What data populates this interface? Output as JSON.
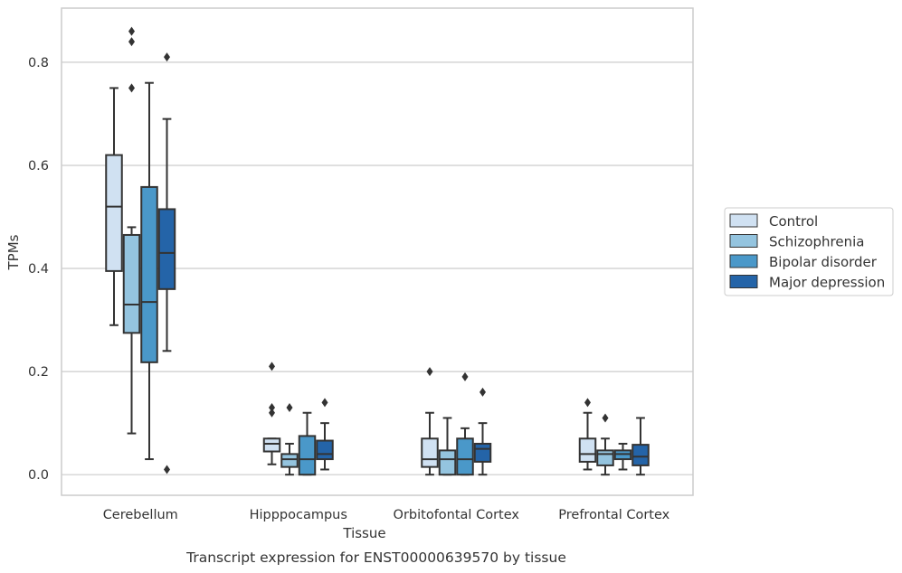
{
  "chart_data": {
    "type": "box",
    "title": "",
    "caption": "Transcript expression for ENST00000639570 by tissue",
    "xlabel": "Tissue",
    "ylabel": "TPMs",
    "ylim": [
      -0.04,
      0.905
    ],
    "yticks": [
      0.0,
      0.2,
      0.4,
      0.6,
      0.8
    ],
    "ytick_labels": [
      "0.0",
      "0.2",
      "0.4",
      "0.6",
      "0.8"
    ],
    "grid": "horizontal",
    "legend_position": "right",
    "categories": [
      "Cerebellum",
      "Hipppocampus",
      "Orbitofontal Cortex",
      "Prefrontal Cortex"
    ],
    "series": [
      {
        "name": "Control",
        "color": "#d0e1f2",
        "boxes": [
          {
            "whisker_low": 0.29,
            "q1": 0.395,
            "median": 0.52,
            "q3": 0.62,
            "whisker_high": 0.75,
            "outliers": []
          },
          {
            "whisker_low": 0.02,
            "q1": 0.045,
            "median": 0.06,
            "q3": 0.07,
            "whisker_high": 0.07,
            "outliers": [
              0.12,
              0.13,
              0.21
            ]
          },
          {
            "whisker_low": 0.0,
            "q1": 0.015,
            "median": 0.03,
            "q3": 0.07,
            "whisker_high": 0.12,
            "outliers": [
              0.2
            ]
          },
          {
            "whisker_low": 0.01,
            "q1": 0.025,
            "median": 0.04,
            "q3": 0.07,
            "whisker_high": 0.12,
            "outliers": [
              0.14
            ]
          }
        ]
      },
      {
        "name": "Schizophrenia",
        "color": "#94c4df",
        "boxes": [
          {
            "whisker_low": 0.08,
            "q1": 0.275,
            "median": 0.33,
            "q3": 0.465,
            "whisker_high": 0.48,
            "outliers": [
              0.75,
              0.84,
              0.86
            ]
          },
          {
            "whisker_low": 0.0,
            "q1": 0.015,
            "median": 0.03,
            "q3": 0.04,
            "whisker_high": 0.06,
            "outliers": [
              0.13
            ]
          },
          {
            "whisker_low": 0.0,
            "q1": 0.0,
            "median": 0.03,
            "q3": 0.047,
            "whisker_high": 0.11,
            "outliers": []
          },
          {
            "whisker_low": 0.0,
            "q1": 0.018,
            "median": 0.04,
            "q3": 0.047,
            "whisker_high": 0.07,
            "outliers": [
              0.11
            ]
          }
        ]
      },
      {
        "name": "Bipolar disorder",
        "color": "#4a98c9",
        "boxes": [
          {
            "whisker_low": 0.03,
            "q1": 0.218,
            "median": 0.335,
            "q3": 0.558,
            "whisker_high": 0.76,
            "outliers": []
          },
          {
            "whisker_low": 0.0,
            "q1": 0.0,
            "median": 0.03,
            "q3": 0.075,
            "whisker_high": 0.12,
            "outliers": []
          },
          {
            "whisker_low": 0.0,
            "q1": 0.0,
            "median": 0.03,
            "q3": 0.07,
            "whisker_high": 0.09,
            "outliers": [
              0.19
            ]
          },
          {
            "whisker_low": 0.01,
            "q1": 0.03,
            "median": 0.04,
            "q3": 0.047,
            "whisker_high": 0.06,
            "outliers": []
          }
        ]
      },
      {
        "name": "Major depression",
        "color": "#2464a8",
        "boxes": [
          {
            "whisker_low": 0.24,
            "q1": 0.36,
            "median": 0.43,
            "q3": 0.515,
            "whisker_high": 0.69,
            "outliers": [
              0.01,
              0.81
            ]
          },
          {
            "whisker_low": 0.01,
            "q1": 0.03,
            "median": 0.04,
            "q3": 0.066,
            "whisker_high": 0.1,
            "outliers": [
              0.14
            ]
          },
          {
            "whisker_low": 0.0,
            "q1": 0.025,
            "median": 0.05,
            "q3": 0.06,
            "whisker_high": 0.1,
            "outliers": [
              0.16
            ]
          },
          {
            "whisker_low": 0.0,
            "q1": 0.018,
            "median": 0.035,
            "q3": 0.058,
            "whisker_high": 0.11,
            "outliers": []
          }
        ]
      }
    ]
  }
}
